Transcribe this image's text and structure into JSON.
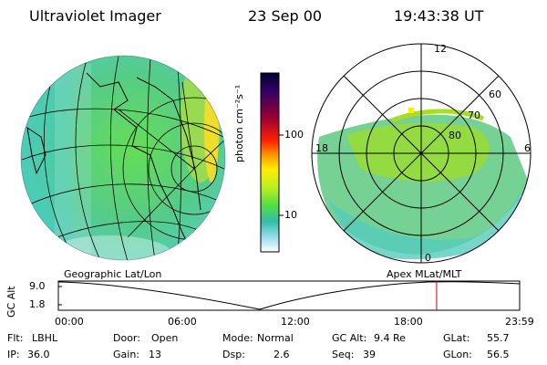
{
  "header": {
    "instrument": "Ultraviolet Imager",
    "date": "23 Sep 00",
    "time": "19:43:38 UT"
  },
  "colorbar": {
    "unit_label": "photon cm⁻²s⁻¹",
    "ticks": [
      "100",
      "10"
    ],
    "scale": "log",
    "colors": [
      "#000033",
      "#330066",
      "#990033",
      "#ff0000",
      "#ff9900",
      "#ffee00",
      "#bbee22",
      "#55dd44",
      "#33bbaa",
      "#99ddee",
      "#ffffff"
    ]
  },
  "map_left": {
    "caption": "Geographic Lat/Lon"
  },
  "map_right": {
    "caption": "Apex MLat/MLT",
    "mlt_labels": [
      "12",
      "18",
      "6",
      "0"
    ],
    "lat_labels": [
      "60",
      "70",
      "80"
    ]
  },
  "altitude_plot": {
    "ylabel": "GC Alt",
    "yticks": [
      "9.0",
      "1.8"
    ],
    "xticks": [
      "00:00",
      "06:00",
      "12:00",
      "18:00",
      "23:59"
    ],
    "marker_color": "#cc0000",
    "current_time_fraction": 0.82
  },
  "footer": {
    "row1": [
      {
        "label": "Flt:",
        "value": "LBHL"
      },
      {
        "label": "Door:",
        "value": "Open"
      },
      {
        "label": "Mode:",
        "value": "Normal"
      },
      {
        "label": "GC Alt:",
        "value": "9.4 Re"
      },
      {
        "label": "GLat:",
        "value": "55.7"
      }
    ],
    "row2": [
      {
        "label": "IP:",
        "value": "36.0"
      },
      {
        "label": "Gain:",
        "value": "13"
      },
      {
        "label": "Dsp:",
        "value": "2.6"
      },
      {
        "label": "Seq:",
        "value": "39"
      },
      {
        "label": "GLon:",
        "value": "56.5"
      }
    ]
  }
}
